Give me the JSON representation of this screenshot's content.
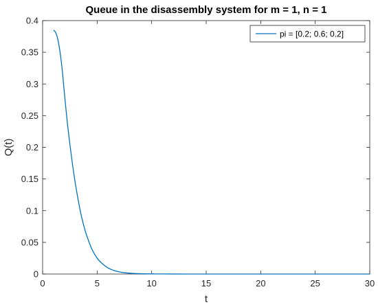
{
  "chart_data": {
    "type": "line",
    "title": "Queue in the disassembly system for m = 1, n = 1",
    "xlabel": "t",
    "ylabel": "Q(t)",
    "xlim": [
      0,
      30
    ],
    "ylim": [
      0,
      0.4
    ],
    "xticks": [
      0,
      5,
      10,
      15,
      20,
      25,
      30
    ],
    "xtick_labels": [
      "0",
      "5",
      "10",
      "15",
      "20",
      "25",
      "30"
    ],
    "yticks": [
      0,
      0.05,
      0.1,
      0.15,
      0.2,
      0.25,
      0.3,
      0.35,
      0.4
    ],
    "ytick_labels": [
      "0",
      "0.05",
      "0.1",
      "0.15",
      "0.2",
      "0.25",
      "0.3",
      "0.35",
      "0.4"
    ],
    "grid": false,
    "legend_position": "top-right",
    "series": [
      {
        "name": "pi = [0.2; 0.6; 0.2]",
        "color": "#0072BD",
        "x": [
          1,
          1.2,
          1.4,
          1.6,
          1.8,
          2,
          2.25,
          2.5,
          2.75,
          3,
          3.25,
          3.5,
          3.75,
          4,
          4.5,
          5,
          5.5,
          6,
          6.5,
          7,
          7.5,
          8,
          8.5,
          9,
          10,
          11,
          12,
          13,
          14,
          15,
          17,
          20,
          25,
          30
        ],
        "y": [
          0.385,
          0.381,
          0.37,
          0.35,
          0.322,
          0.285,
          0.242,
          0.205,
          0.172,
          0.143,
          0.118,
          0.096,
          0.078,
          0.063,
          0.04,
          0.025,
          0.016,
          0.0095,
          0.0058,
          0.0035,
          0.0021,
          0.0013,
          0.0008,
          0.0005,
          0.0002,
          0.0001,
          4e-05,
          2e-05,
          1e-05,
          5e-06,
          0,
          0,
          0,
          0
        ]
      }
    ]
  }
}
